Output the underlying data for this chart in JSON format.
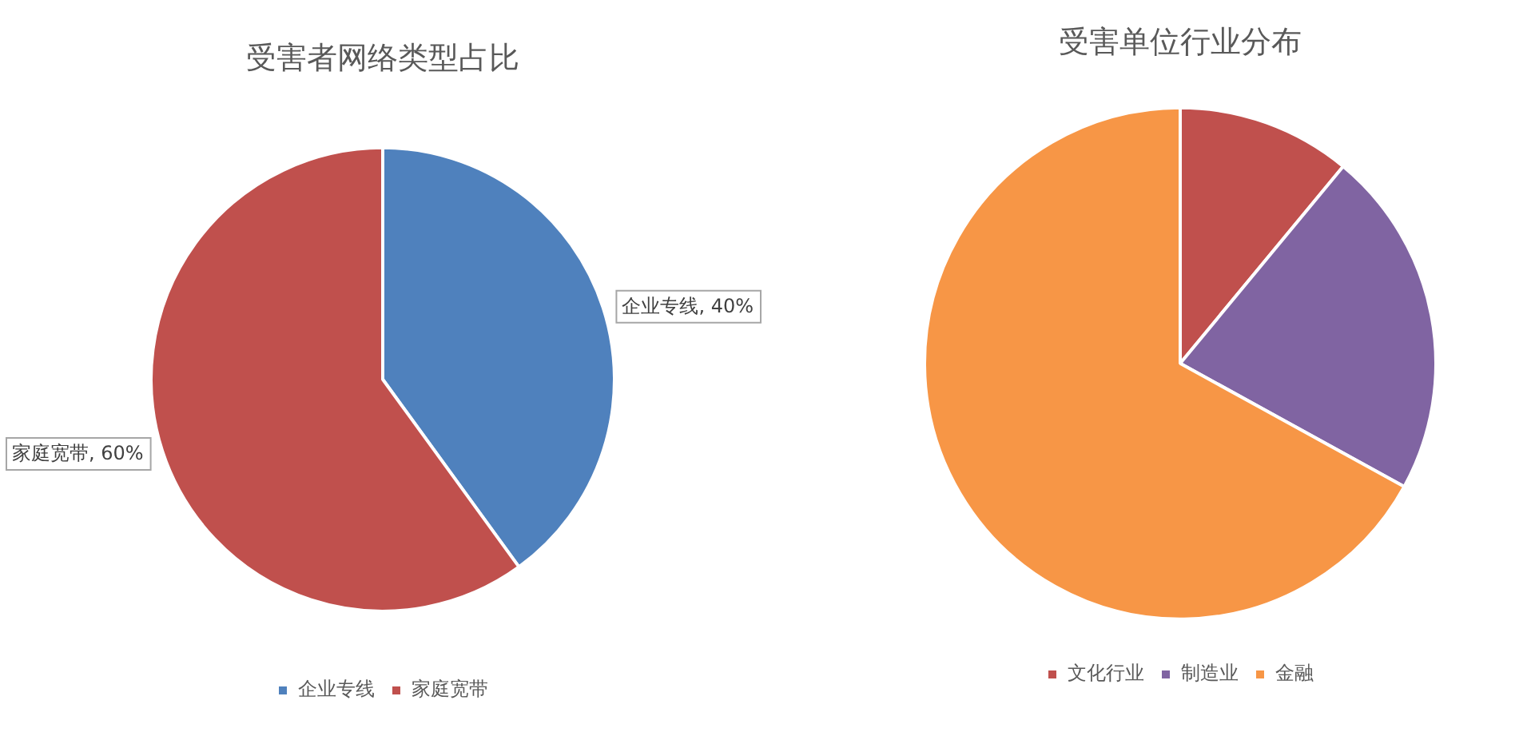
{
  "chart_data": [
    {
      "type": "pie",
      "title": "受害者网络类型占比",
      "categories": [
        "企业专线",
        "家庭宽带"
      ],
      "values": [
        40,
        60
      ],
      "colors": [
        "#4f81bd",
        "#c0504d"
      ],
      "value_labels": [
        "企业专线, 40%",
        "家庭宽带, 60%"
      ],
      "legend": "bottom"
    },
    {
      "type": "pie",
      "title": "受害单位行业分布",
      "categories": [
        "文化行业",
        "制造业",
        "金融"
      ],
      "values": [
        11,
        22,
        67
      ],
      "colors": [
        "#c0504d",
        "#8064a2",
        "#f79646"
      ],
      "legend": "bottom"
    }
  ]
}
